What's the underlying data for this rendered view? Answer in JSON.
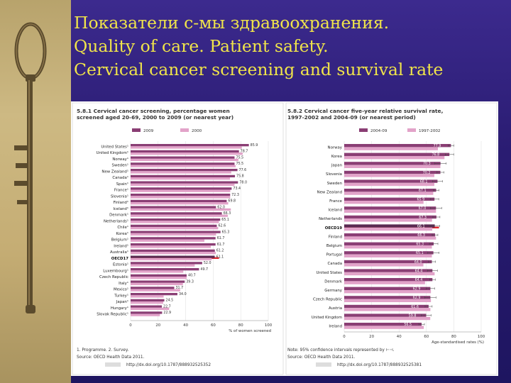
{
  "title_lines": [
    "Показатели с-мы здравоохранения.",
    "Quality of care. Patient safety.",
    "Cervical cancer screening and survival rate"
  ],
  "colors": {
    "background": "#2a1c72",
    "title": "#f0e44a",
    "bar_primary": "#8a3e74",
    "bar_secondary": "#e2a3c9",
    "bar_highlight": "#e0242c"
  },
  "chart_data": [
    {
      "type": "bar",
      "orientation": "horizontal",
      "title_lines": [
        "5.8.1 Cervical cancer screening, percentage women",
        "screened aged 20-69, 2000 to 2009 (or nearest year)"
      ],
      "legend": [
        "2009",
        "2000"
      ],
      "categories": [
        "United States¹",
        "United Kingdom¹",
        "Norway¹",
        "Sweden¹",
        "New Zealand¹",
        "Canada¹",
        "Spain¹",
        "France¹",
        "Slovenia¹",
        "Finland¹",
        "Iceland¹",
        "Denmark¹",
        "Netherlands¹",
        "Chile¹",
        "Korea¹",
        "Belgium¹",
        "Ireland¹",
        "Australia¹",
        "OECD17",
        "Estonia¹",
        "Luxembourg¹",
        "Czech Republic",
        "Italy¹",
        "Mexico¹",
        "Turkey¹",
        "Japan¹",
        "Hungary¹",
        "Slovak Republic¹"
      ],
      "highlight": "OECD17",
      "series": [
        {
          "name": "2009",
          "values": [
            85.9,
            78.7,
            75.5,
            75.5,
            77.6,
            75.8,
            78.0,
            73.4,
            72.3,
            69.8,
            62.0,
            66.3,
            65.1,
            62.6,
            65.3,
            61.7,
            61.7,
            61.2,
            61.1,
            52.0,
            49.7,
            40.7,
            39.3,
            31.7,
            34.0,
            24.5,
            22.7,
            22.9
          ]
        },
        {
          "name": "2000",
          "values": [
            80.8,
            81.4,
            78.3,
            76.3,
            73.1,
            72.2,
            75.5,
            72.4,
            72.3,
            70.9,
            72.8,
            70.6,
            64.1,
            63.6,
            62.1,
            53.6,
            58.3,
            61.9,
            58.9,
            46.6,
            38.3,
            40.7,
            38.0,
            36.0,
            24.0,
            23.7,
            28.0,
            21.3
          ]
        }
      ],
      "value_labels": [
        "85.9",
        "78.7",
        "75.5",
        "75.5",
        "77.6",
        "75.8",
        "78.0",
        "73.4",
        "72.3",
        "69.8",
        "62.0",
        "66.3",
        "65.1",
        "62.6",
        "65.3",
        "61.7",
        "61.7",
        "61.2",
        "61.1",
        "52.0",
        "49.7",
        "40.7",
        "39.3",
        "31.7",
        "34.0",
        "24.5",
        "22.7",
        "22.9"
      ],
      "xlim": [
        0,
        100
      ],
      "xticks": [
        "0",
        "20",
        "40",
        "60",
        "80",
        "100"
      ],
      "xlabel": "% of women screened",
      "footnote": "1. Programme.   2. Survey.",
      "source": "Source: OECD Health Data 2011.",
      "link": "http://dx.doi.org/10.1787/888932525352"
    },
    {
      "type": "bar",
      "orientation": "horizontal",
      "title_lines": [
        "5.8.2 Cervical cancer five-year relative survival rate,",
        "1997-2002 and 2004-09 (or nearest period)"
      ],
      "legend": [
        "2004-09",
        "1997-2002"
      ],
      "categories": [
        "Norway",
        "Korea",
        "Japan",
        "Slovenia",
        "Sweden",
        "New Zealand",
        "France",
        "Iceland",
        "Netherlands",
        "OECD19",
        "Finland",
        "Belgium",
        "Portugal",
        "Canada",
        "United States",
        "Denmark",
        "Germany",
        "Czech Republic",
        "Austria",
        "United Kingdom",
        "Ireland"
      ],
      "highlight": "OECD19",
      "series": [
        {
          "name": "2004-09",
          "values": [
            77.9,
            76.8,
            70.3,
            70.2,
            68.1,
            67.1,
            65.9,
            67.0,
            67.3,
            66.1,
            66.3,
            65.3,
            65.1,
            64.0,
            64.4,
            64.4,
            62.9,
            62.9,
            61.6,
            59.8,
            56.5
          ]
        },
        {
          "name": "1997-2002",
          "values": [
            68.4,
            73.2,
            70.2,
            65.8,
            65.8,
            65.0,
            57.9,
            67.0,
            64.1,
            64.3,
            67.0,
            64.0,
            64.0,
            57.8,
            66.0,
            59.0,
            63.3,
            63.3,
            62.9,
            62.8,
            58.1
          ]
        }
      ],
      "value_labels": [
        "77.9",
        "76.8",
        "70.3",
        "70.2",
        "68.1",
        "67.1",
        "65.9",
        "67.0",
        "67.3",
        "66.1",
        "66.3",
        "65.3",
        "65.1",
        "64.0",
        "64.4",
        "64.4",
        "62.9",
        "62.9",
        "61.6",
        "59.8",
        "56.5"
      ],
      "xlim": [
        0,
        100
      ],
      "xticks": [
        "0",
        "20",
        "40",
        "60",
        "80",
        "100"
      ],
      "xlabel": "Age-standardised rates (%)",
      "footnote": "Note: 95% confidence intervals represented by ⊢⊣.",
      "source": "Source: OECD Health Data 2011.",
      "link": "http://dx.doi.org/10.1787/888932525381"
    }
  ]
}
